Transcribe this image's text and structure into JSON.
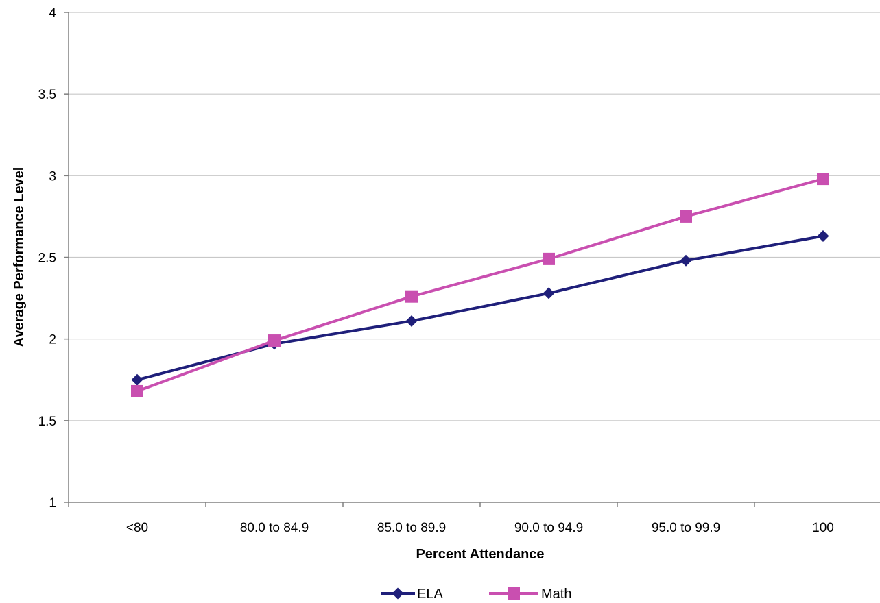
{
  "chart_data": {
    "type": "line",
    "title": "",
    "xlabel": "Percent Attendance",
    "ylabel": "Average Performance Level",
    "categories": [
      "<80",
      "80.0 to 84.9",
      "85.0 to 89.9",
      "90.0 to 94.9",
      "95.0 to 99.9",
      "100"
    ],
    "ylim": [
      1,
      4
    ],
    "yticks": [
      "1",
      "1.5",
      "2",
      "2.5",
      "3",
      "3.5",
      "4"
    ],
    "grid": true,
    "legend_position": "bottom",
    "series": [
      {
        "name": "ELA",
        "marker": "diamond",
        "color": "#1f1f7a",
        "values": [
          1.75,
          1.97,
          2.11,
          2.28,
          2.48,
          2.63
        ]
      },
      {
        "name": "Math",
        "marker": "square",
        "color": "#c94fb0",
        "values": [
          1.68,
          1.99,
          2.26,
          2.49,
          2.75,
          2.98
        ]
      }
    ]
  }
}
